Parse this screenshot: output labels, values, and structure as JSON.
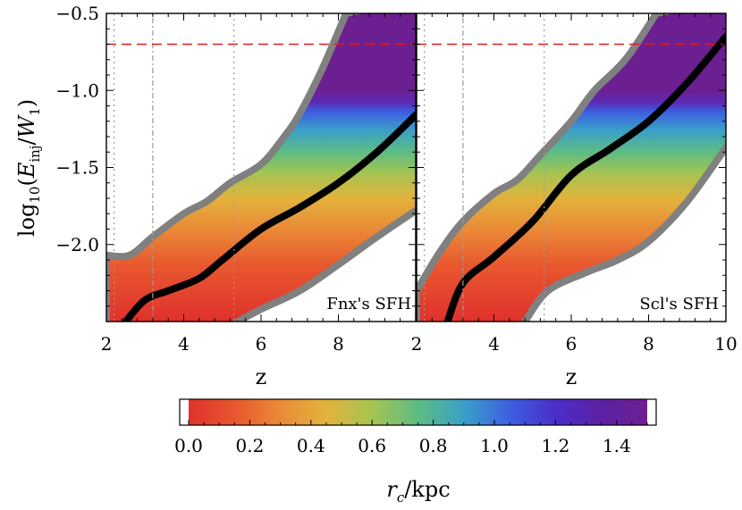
{
  "chart_data": [
    {
      "type": "area",
      "panel": "left",
      "label": "Fnx's SFH",
      "xlabel": "z",
      "ylabel": "log10(E_inj/W_1)",
      "xlim": [
        2,
        10
      ],
      "ylim": [
        -2.5,
        -0.5
      ],
      "xticks": [
        "2",
        "4",
        "6",
        "8"
      ],
      "yticks": [
        "−0.5",
        "−1.0",
        "−1.5",
        "−2.0"
      ],
      "reference_line_y": -0.7,
      "vertical_lines_x": [
        2.2,
        3.2,
        5.3
      ],
      "band_upper": [
        [
          2.0,
          -2.07
        ],
        [
          2.6,
          -2.07
        ],
        [
          3.2,
          -1.95
        ],
        [
          4.0,
          -1.8
        ],
        [
          4.6,
          -1.72
        ],
        [
          5.2,
          -1.6
        ],
        [
          6.0,
          -1.48
        ],
        [
          6.6,
          -1.3
        ],
        [
          7.0,
          -1.15
        ],
        [
          7.6,
          -0.85
        ],
        [
          8.2,
          -0.5
        ]
      ],
      "band_lower": [
        [
          5.4,
          -2.5
        ],
        [
          6.0,
          -2.42
        ],
        [
          7.0,
          -2.3
        ],
        [
          8.0,
          -2.13
        ],
        [
          9.0,
          -1.95
        ],
        [
          10.0,
          -1.78
        ]
      ],
      "median": [
        [
          2.5,
          -2.5
        ],
        [
          3.0,
          -2.36
        ],
        [
          3.6,
          -2.3
        ],
        [
          4.4,
          -2.22
        ],
        [
          5.0,
          -2.1
        ],
        [
          6.0,
          -1.9
        ],
        [
          7.0,
          -1.76
        ],
        [
          8.0,
          -1.6
        ],
        [
          9.0,
          -1.4
        ],
        [
          10.0,
          -1.16
        ]
      ]
    },
    {
      "type": "area",
      "panel": "right",
      "label": "Scl's SFH",
      "xlabel": "z",
      "xlim": [
        2,
        10
      ],
      "ylim": [
        -2.5,
        -0.5
      ],
      "xticks": [
        "2",
        "4",
        "6",
        "8",
        "10"
      ],
      "reference_line_y": -0.7,
      "vertical_lines_x": [
        2.2,
        3.2,
        5.3
      ],
      "band_upper": [
        [
          2.0,
          -2.3
        ],
        [
          2.6,
          -2.05
        ],
        [
          3.2,
          -1.85
        ],
        [
          4.0,
          -1.67
        ],
        [
          4.6,
          -1.58
        ],
        [
          5.2,
          -1.42
        ],
        [
          6.0,
          -1.2
        ],
        [
          6.6,
          -1.0
        ],
        [
          7.4,
          -0.8
        ],
        [
          8.2,
          -0.5
        ]
      ],
      "band_lower": [
        [
          4.8,
          -2.5
        ],
        [
          5.4,
          -2.3
        ],
        [
          6.4,
          -2.18
        ],
        [
          7.2,
          -2.1
        ],
        [
          8.0,
          -1.98
        ],
        [
          9.0,
          -1.72
        ],
        [
          10.0,
          -1.37
        ]
      ],
      "median": [
        [
          2.8,
          -2.5
        ],
        [
          3.2,
          -2.25
        ],
        [
          4.0,
          -2.08
        ],
        [
          5.0,
          -1.85
        ],
        [
          6.0,
          -1.55
        ],
        [
          7.0,
          -1.38
        ],
        [
          8.0,
          -1.2
        ],
        [
          9.0,
          -0.95
        ],
        [
          10.0,
          -0.65
        ]
      ]
    }
  ],
  "colorbar": {
    "title": "r_c/kpc",
    "ticks": [
      "0.0",
      "0.2",
      "0.4",
      "0.6",
      "0.8",
      "1.0",
      "1.2",
      "1.4"
    ],
    "tick_values": [
      0.0,
      0.2,
      0.4,
      0.6,
      0.8,
      1.0,
      1.2,
      1.4
    ],
    "range": [
      0.0,
      1.5
    ]
  },
  "colors": {
    "gradient": [
      "#e0312c",
      "#e8572f",
      "#ea8a37",
      "#e2b33c",
      "#a6c451",
      "#5cbc83",
      "#3aa0c8",
      "#3c5fe0",
      "#4a2ec9",
      "#5c21a5",
      "#6e1f92"
    ],
    "band_top": "#6c1f91",
    "outline": "#808080",
    "median": "#000000",
    "reference": "#e11b1b",
    "vline": "#9a9a9a"
  }
}
